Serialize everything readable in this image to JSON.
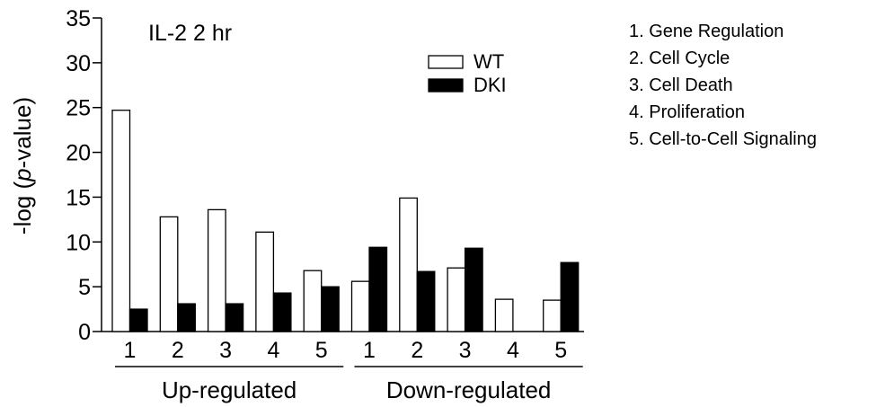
{
  "chart_data": {
    "type": "bar",
    "title": "IL-2 2 hr",
    "ylabel_prefix": "-log (",
    "ylabel_italic": "p",
    "ylabel_suffix": "-value)",
    "ylim": [
      0,
      35
    ],
    "yticks": [
      0,
      5,
      10,
      15,
      20,
      25,
      30,
      35
    ],
    "groups": [
      {
        "label": "Up-regulated",
        "categories": [
          "1",
          "2",
          "3",
          "4",
          "5"
        ]
      },
      {
        "label": "Down-regulated",
        "categories": [
          "1",
          "2",
          "3",
          "4",
          "5"
        ]
      }
    ],
    "series": [
      {
        "name": "WT",
        "color": "#ffffff",
        "values": [
          24.7,
          12.8,
          13.6,
          11.1,
          6.8,
          5.6,
          14.9,
          7.1,
          3.6,
          3.5
        ]
      },
      {
        "name": "DKI",
        "color": "#000000",
        "values": [
          2.5,
          3.1,
          3.1,
          4.3,
          5.0,
          9.4,
          6.7,
          9.3,
          null,
          7.7
        ]
      }
    ],
    "legend_position": "top-right",
    "category_key": [
      "1. Gene Regulation",
      "2. Cell Cycle",
      "3. Cell Death",
      "4. Proliferation",
      "5. Cell-to-Cell Signaling"
    ]
  }
}
